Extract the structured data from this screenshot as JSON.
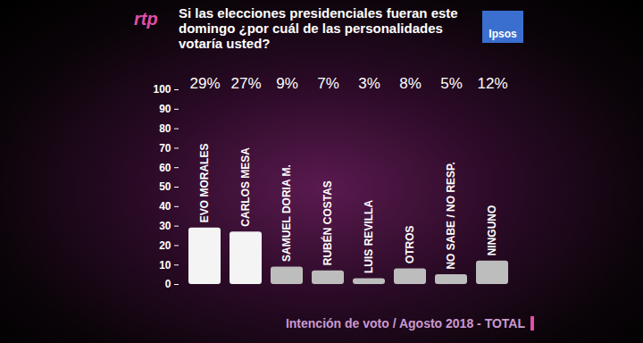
{
  "chart_data": {
    "type": "bar",
    "title": "Si las elecciones presidenciales fueran este domingo ¿por cuál de las personalidades votaría usted?",
    "subtitle": "Intención de voto / Agosto 2018 - TOTAL",
    "annotations": [
      "rtp",
      "Ipsos"
    ],
    "categories": [
      "EVO MORALES",
      "CARLOS MESA",
      "SAMUEL DORIA M.",
      "RUBÉN COSTAS",
      "LUIS REVILLA",
      "OTROS",
      "NO SABE / NO RESP.",
      "NINGUNO"
    ],
    "values": [
      29,
      27,
      9,
      7,
      3,
      8,
      5,
      12
    ],
    "value_labels": [
      "29%",
      "27%",
      "9%",
      "7%",
      "3%",
      "8%",
      "5%",
      "12%"
    ],
    "colors": [
      "#f4f4f4",
      "#f4f4f4",
      "#bdbdbd",
      "#bdbdbd",
      "#bdbdbd",
      "#bdbdbd",
      "#bdbdbd",
      "#bdbdbd"
    ],
    "ylim": [
      0,
      100
    ],
    "yticks": [
      0,
      10,
      20,
      30,
      40,
      50,
      60,
      70,
      80,
      90,
      100
    ],
    "grid": false,
    "data_labels": true,
    "tick_labels": "y"
  }
}
